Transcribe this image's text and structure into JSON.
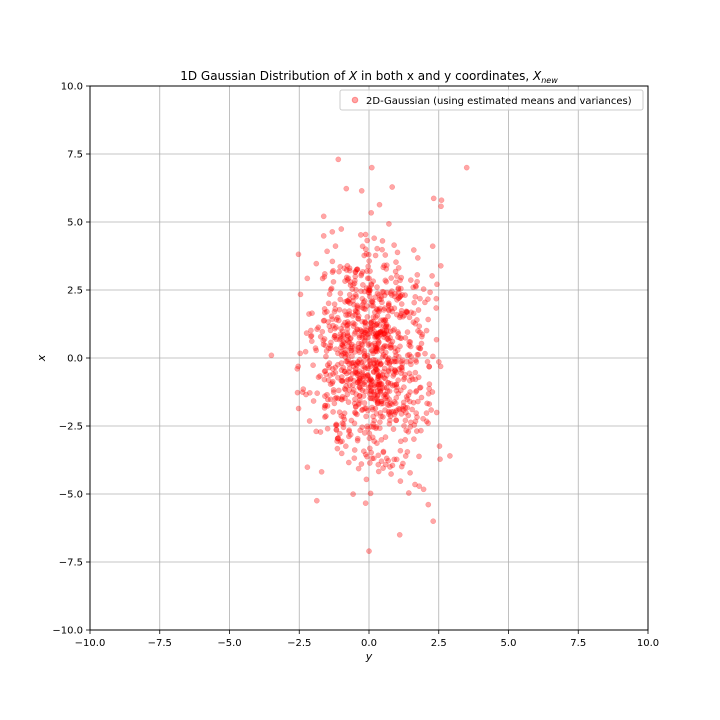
{
  "chart_data": {
    "type": "scatter",
    "title": "1D Gaussian Distribution of X in both x and y coordinates, X_new",
    "title_parts": {
      "prefix": "1D Gaussian Distribution of ",
      "var": "X",
      "middle": " in both x and y coordinates, ",
      "var2": "X",
      "sub": "new"
    },
    "xlabel": "y",
    "ylabel": "x",
    "xlim": [
      -10,
      10
    ],
    "ylim": [
      -10,
      10
    ],
    "xticks": [
      "−10.0",
      "−7.5",
      "−5.0",
      "−2.5",
      "0.0",
      "2.5",
      "5.0",
      "7.5",
      "10.0"
    ],
    "yticks": [
      "−10.0",
      "−7.5",
      "−5.0",
      "−2.5",
      "0.0",
      "2.5",
      "5.0",
      "7.5",
      "10.0"
    ],
    "grid": true,
    "legend_position": "top-right",
    "series": [
      {
        "name": "2D-Gaussian (using estimated means and variances)",
        "color": "#ff0000",
        "alpha": 0.35,
        "n_points": 1000,
        "mean_x": 0.1,
        "std_x": 1.0,
        "mean_y": 0.0,
        "std_y": 2.0,
        "outliers": [
          [
            3.5,
            7.0
          ],
          [
            -3.5,
            0.1
          ],
          [
            -1.1,
            7.3
          ],
          [
            0.1,
            7.0
          ],
          [
            2.6,
            5.8
          ],
          [
            2.9,
            -3.6
          ],
          [
            2.3,
            -6.0
          ],
          [
            1.1,
            -6.5
          ],
          [
            0.0,
            -7.1
          ]
        ]
      }
    ]
  }
}
